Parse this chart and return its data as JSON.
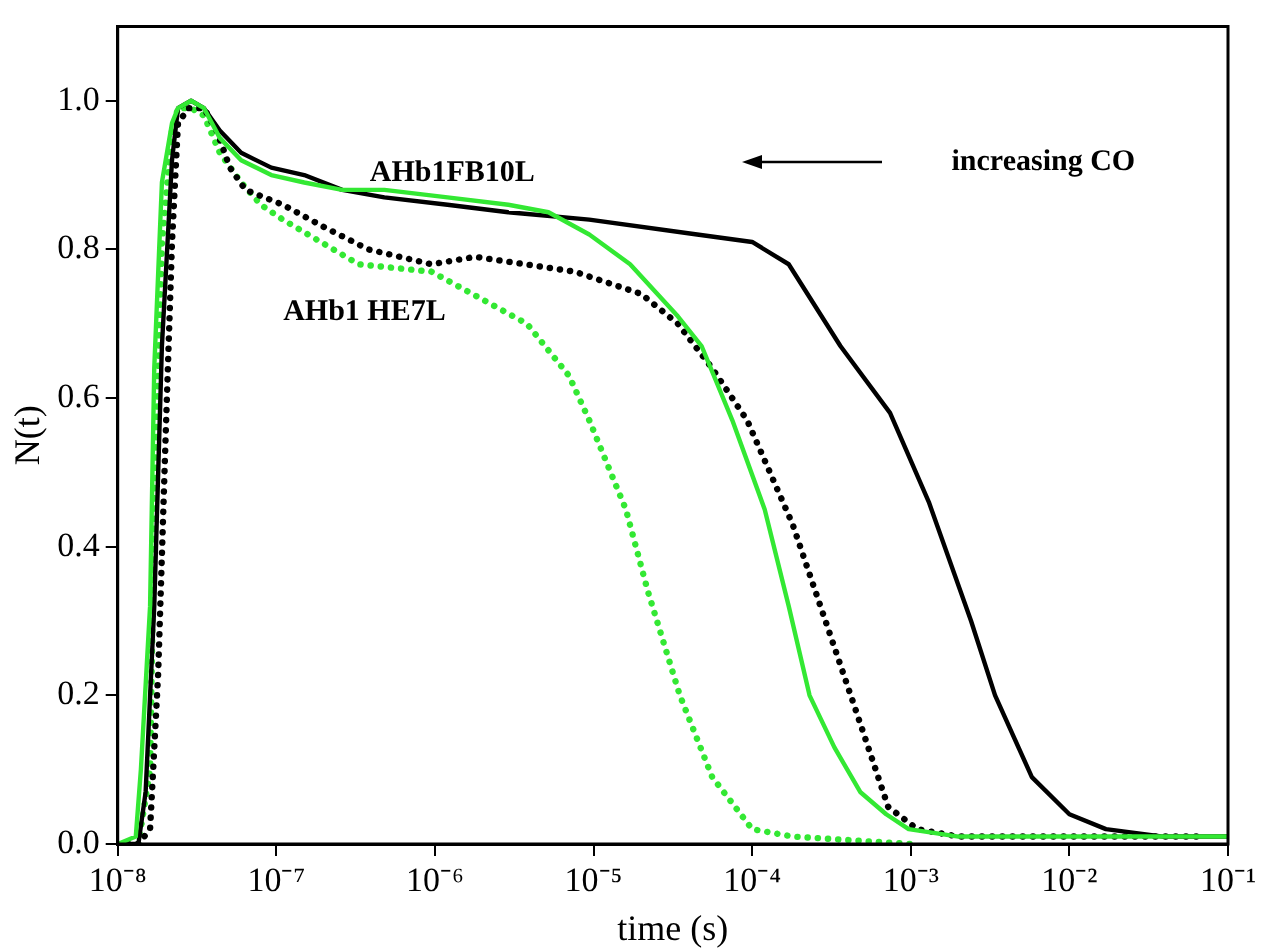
{
  "chart_data": {
    "type": "line",
    "xlabel": "time (s)",
    "ylabel": "N(t)",
    "log": "x",
    "grid": false,
    "xlim": [
      1e-08,
      0.1
    ],
    "xticks": [
      {
        "value": 1e-08,
        "label": "10⁻⁸"
      },
      {
        "value": 1e-07,
        "label": "10⁻⁷"
      },
      {
        "value": 1e-06,
        "label": "10⁻⁶"
      },
      {
        "value": 1e-05,
        "label": "10⁻⁵"
      },
      {
        "value": 0.0001,
        "label": "10⁻⁴"
      },
      {
        "value": 0.001,
        "label": "10⁻³"
      },
      {
        "value": 0.01,
        "label": "10⁻²"
      },
      {
        "value": 0.1,
        "label": "10⁻¹"
      }
    ],
    "ylim": [
      0,
      1.1
    ],
    "yticks": [
      {
        "value": 0,
        "label": "0.0"
      },
      0.2,
      0.4,
      0.6,
      0.8,
      {
        "value": 1,
        "label": "1.0"
      }
    ],
    "annotations": [
      "AHb1FB10L",
      "AHb1 HE7L",
      "increasing CO"
    ],
    "series": [
      {
        "type": "line",
        "line_style": "solid",
        "color": "#33e833",
        "x": [
          1e-08,
          1.3e-08,
          1.4e-08,
          1.6e-08,
          1.7e-08,
          1.9e-08,
          2.2e-08,
          2.4e-08,
          2.9e-08,
          3.5e-08,
          4.4e-08,
          6e-08,
          9.3e-08,
          1.5e-07,
          2.6e-07,
          4.8e-07,
          1.2e-06,
          2.9e-06,
          5.2e-06,
          9.4e-06,
          1.7e-05,
          3.4e-05,
          4.8e-05,
          7.5e-05,
          0.00012,
          0.00017,
          0.00023,
          0.00033,
          0.00048,
          0.0007,
          0.00097,
          0.002,
          0.0065,
          0.021,
          0.07,
          0.099
        ],
        "values": [
          0,
          0.01,
          0.1,
          0.32,
          0.64,
          0.89,
          0.97,
          0.99,
          1,
          0.99,
          0.95,
          0.92,
          0.9,
          0.89,
          0.88,
          0.88,
          0.87,
          0.86,
          0.85,
          0.82,
          0.78,
          0.71,
          0.67,
          0.57,
          0.45,
          0.32,
          0.2,
          0.13,
          0.07,
          0.04,
          0.02,
          0.01,
          0.01,
          0.01,
          0.01,
          0.01
        ]
      },
      {
        "type": "line",
        "line_style": "solid",
        "color": "#000000",
        "x": [
          1e-08,
          1.35e-08,
          1.5e-08,
          1.7e-08,
          1.9e-08,
          2.2e-08,
          2.4e-08,
          2.9e-08,
          3.5e-08,
          4.4e-08,
          6e-08,
          9.3e-08,
          1.5e-07,
          2.6e-07,
          4.8e-07,
          1.2e-06,
          2.9e-06,
          9.4e-06,
          4.5e-05,
          0.0001,
          0.00017,
          0.00036,
          0.00074,
          0.0013,
          0.0024,
          0.0034,
          0.0058,
          0.01,
          0.017,
          0.039,
          0.099
        ],
        "values": [
          0,
          0,
          0.07,
          0.32,
          0.67,
          0.92,
          0.99,
          1,
          0.99,
          0.96,
          0.93,
          0.91,
          0.9,
          0.88,
          0.87,
          0.86,
          0.85,
          0.84,
          0.82,
          0.81,
          0.78,
          0.67,
          0.58,
          0.46,
          0.3,
          0.2,
          0.09,
          0.04,
          0.02,
          0.01,
          0.01
        ]
      },
      {
        "type": "line",
        "line_style": "dotted",
        "color": "#000000",
        "x": [
          1e-08,
          1.35e-08,
          1.6e-08,
          1.8e-08,
          2e-08,
          2.2e-08,
          2.4e-08,
          2.8e-08,
          3.5e-08,
          4.2e-08,
          5.1e-08,
          6.4e-08,
          1.1e-07,
          2e-07,
          3.8e-07,
          9.5e-07,
          1.8e-06,
          7.6e-06,
          2e-05,
          3.4e-05,
          5.6e-05,
          9.3e-05,
          0.00018,
          0.00029,
          0.00045,
          0.00072,
          0.0011,
          0.002,
          0.016,
          0.07
        ],
        "values": [
          0,
          0,
          0.02,
          0.23,
          0.54,
          0.81,
          0.97,
          0.99,
          0.99,
          0.96,
          0.91,
          0.88,
          0.86,
          0.83,
          0.8,
          0.78,
          0.79,
          0.77,
          0.74,
          0.7,
          0.64,
          0.57,
          0.43,
          0.3,
          0.18,
          0.05,
          0.02,
          0.01,
          0.01,
          0.01
        ]
      },
      {
        "type": "line",
        "line_style": "dotted",
        "color": "#33e833",
        "x": [
          1e-08,
          1.35e-08,
          1.6e-08,
          1.7e-08,
          1.9e-08,
          2.2e-08,
          2.4e-08,
          2.9e-08,
          3.5e-08,
          4.4e-08,
          6e-08,
          8e-08,
          1.1e-07,
          3.3e-07,
          9.5e-07,
          2.1e-06,
          3.8e-06,
          7e-06,
          9.4e-06,
          1.4e-05,
          1.6e-05,
          2.2e-05,
          3.5e-05,
          5.6e-05,
          0.0001,
          0.00018,
          0.001
        ],
        "values": [
          0,
          0,
          0.1,
          0.45,
          0.81,
          0.96,
          0.99,
          0.99,
          0.98,
          0.93,
          0.89,
          0.86,
          0.84,
          0.78,
          0.77,
          0.73,
          0.7,
          0.63,
          0.57,
          0.48,
          0.45,
          0.34,
          0.2,
          0.09,
          0.02,
          0.01,
          0
        ]
      }
    ]
  }
}
